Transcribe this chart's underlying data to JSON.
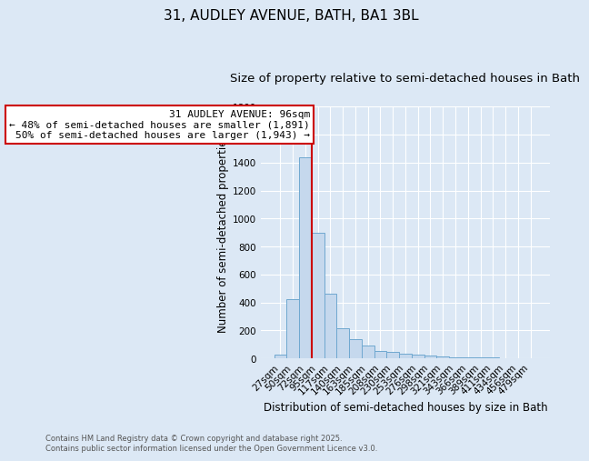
{
  "title": "31, AUDLEY AVENUE, BATH, BA1 3BL",
  "subtitle": "Size of property relative to semi-detached houses in Bath",
  "xlabel": "Distribution of semi-detached houses by size in Bath",
  "ylabel": "Number of semi-detached properties",
  "background_color": "#dce8f5",
  "bar_color": "#c5d8ed",
  "bar_edge_color": "#6fa8d0",
  "grid_color": "#ffffff",
  "categories": [
    "27sqm",
    "50sqm",
    "72sqm",
    "95sqm",
    "117sqm",
    "140sqm",
    "163sqm",
    "185sqm",
    "208sqm",
    "230sqm",
    "253sqm",
    "276sqm",
    "298sqm",
    "321sqm",
    "343sqm",
    "366sqm",
    "389sqm",
    "411sqm",
    "434sqm",
    "456sqm",
    "479sqm"
  ],
  "values": [
    28,
    425,
    1440,
    900,
    465,
    215,
    135,
    93,
    55,
    47,
    35,
    28,
    18,
    13,
    11,
    9,
    11,
    9,
    4,
    2,
    1
  ],
  "ylim": [
    0,
    1800
  ],
  "property_line_bar_index": 2,
  "property_line_color": "#cc0000",
  "annotation_line1": "31 AUDLEY AVENUE: 96sqm",
  "annotation_line2": "← 48% of semi-detached houses are smaller (1,891)",
  "annotation_line3": "50% of semi-detached houses are larger (1,943) →",
  "annotation_box_color": "#cc0000",
  "annotation_text_color": "#000000",
  "annotation_bg_color": "#ffffff",
  "footnote": "Contains HM Land Registry data © Crown copyright and database right 2025.\nContains public sector information licensed under the Open Government Licence v3.0.",
  "title_fontsize": 11,
  "subtitle_fontsize": 9.5,
  "label_fontsize": 8.5,
  "tick_fontsize": 7.5,
  "annotation_fontsize": 8
}
